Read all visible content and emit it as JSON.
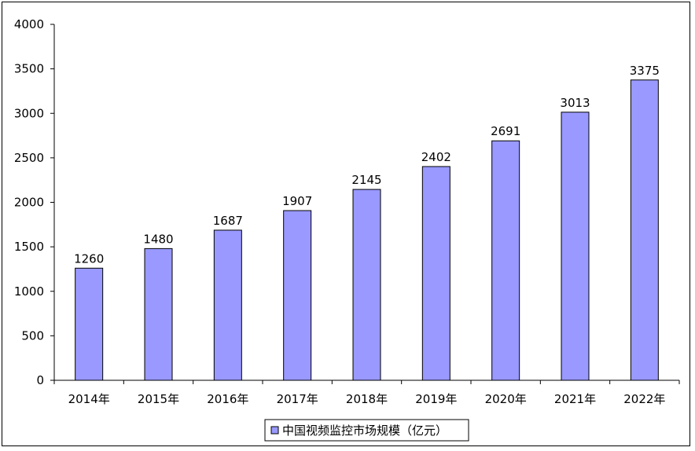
{
  "chart_data": {
    "type": "bar",
    "categories": [
      "2014年",
      "2015年",
      "2016年",
      "2017年",
      "2018年",
      "2019年",
      "2020年",
      "2021年",
      "2022年"
    ],
    "series": [
      {
        "name": "中国视频监控市场规模（亿元）",
        "values": [
          1260,
          1480,
          1687,
          1907,
          2145,
          2402,
          2691,
          3013,
          3375
        ]
      }
    ],
    "yticks": [
      "0",
      "500",
      "1000",
      "1500",
      "2000",
      "2500",
      "3000",
      "3500",
      "4000"
    ],
    "ylim": [
      0,
      4000
    ],
    "grid": false,
    "legend_position": "bottom-center",
    "colors": {
      "bar": "#9999ff",
      "bar_stroke": "#000000",
      "axis": "#000000"
    }
  }
}
